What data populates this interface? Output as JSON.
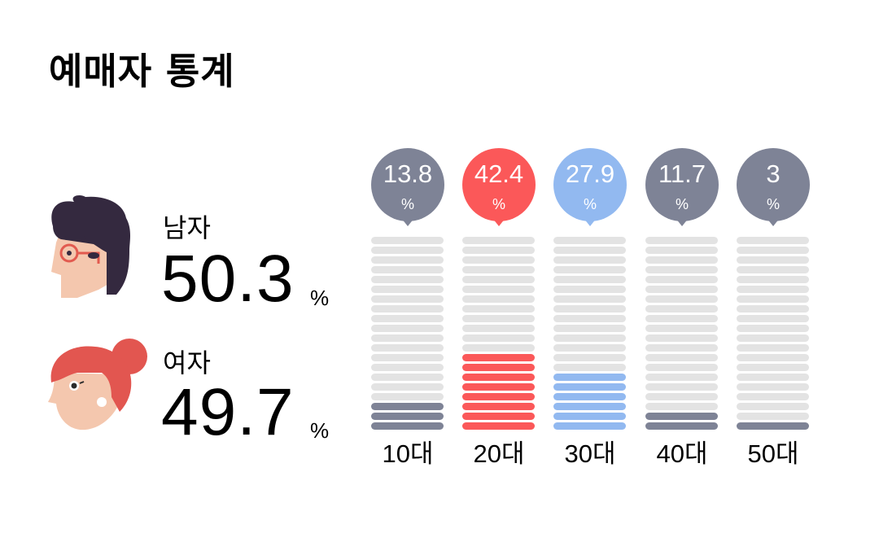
{
  "page": {
    "title": "예매자 통계"
  },
  "gender": {
    "male": {
      "label": "남자",
      "value": "50.3",
      "unit": "%",
      "icon": "male-avatar-icon"
    },
    "female": {
      "label": "여자",
      "value": "49.7",
      "unit": "%",
      "icon": "female-avatar-icon"
    }
  },
  "colors": {
    "gray": "#7e8396",
    "red": "#fb5859",
    "blue": "#92b9f0",
    "empty": "#e3e3e3"
  },
  "age": {
    "segments_per_bar": 20,
    "groups": [
      {
        "label": "10대",
        "value": "13.8",
        "unit": "%",
        "filled": 3,
        "color": "#7e8396"
      },
      {
        "label": "20대",
        "value": "42.4",
        "unit": "%",
        "filled": 8,
        "color": "#fb5859"
      },
      {
        "label": "30대",
        "value": "27.9",
        "unit": "%",
        "filled": 6,
        "color": "#92b9f0"
      },
      {
        "label": "40대",
        "value": "11.7",
        "unit": "%",
        "filled": 2,
        "color": "#7e8396"
      },
      {
        "label": "50대",
        "value": "3",
        "unit": "%",
        "filled": 1,
        "color": "#7e8396"
      }
    ]
  },
  "chart_data": [
    {
      "type": "pie",
      "title": "예매자 통계 - 성별",
      "categories": [
        "남자",
        "여자"
      ],
      "values": [
        50.3,
        49.7
      ],
      "unit": "%"
    },
    {
      "type": "bar",
      "title": "예매자 통계 - 연령대",
      "categories": [
        "10대",
        "20대",
        "30대",
        "40대",
        "50대"
      ],
      "values": [
        13.8,
        42.4,
        27.9,
        11.7,
        3
      ],
      "unit": "%",
      "xlabel": "",
      "ylabel": "",
      "ylim": [
        0,
        100
      ],
      "segments_per_bar": 20,
      "highlight": {
        "20대": "#fb5859",
        "30대": "#92b9f0"
      },
      "grid": false,
      "legend": "none"
    }
  ]
}
